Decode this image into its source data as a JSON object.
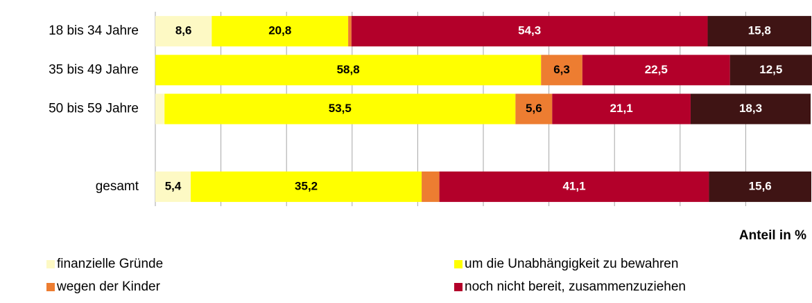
{
  "chart_data": {
    "type": "stacked_hbar",
    "categories": [
      "18 bis 34 Jahre",
      "35 bis 49 Jahre",
      "50 bis 59 Jahre",
      null,
      "gesamt"
    ],
    "x_label": "Anteil in %",
    "xlim": [
      0,
      100
    ],
    "xticks": [
      0,
      10,
      20,
      30,
      40,
      50,
      60,
      70,
      80,
      90,
      100
    ],
    "grid": true,
    "legend": "bottom",
    "series": [
      {
        "name": "finanzielle Gründe",
        "color": "#fdf9c4",
        "values": [
          8.6,
          0,
          1.4,
          null,
          5.4
        ],
        "value_labels": [
          "8,6",
          null,
          "1,4",
          null,
          "5,4"
        ]
      },
      {
        "name": "um die Unabhängigkeit zu bewahren",
        "color": "#ffff00",
        "values": [
          20.8,
          58.8,
          53.5,
          null,
          35.2
        ],
        "value_labels": [
          "20,8",
          "58,8",
          "53,5",
          null,
          "35,2"
        ]
      },
      {
        "name": "wegen der Kinder",
        "color": "#ed7d31",
        "values": [
          0.5,
          6.3,
          5.6,
          null,
          2.7
        ],
        "value_labels": [
          "0,5",
          "6,3",
          "5,6",
          null,
          "2,7"
        ]
      },
      {
        "name": "noch nicht bereit, zusammenzuziehen",
        "color": "#b3002a",
        "values": [
          54.3,
          22.5,
          21.1,
          null,
          41.1
        ],
        "value_labels": [
          "54,3",
          "22,5",
          "21,1",
          null,
          "41,1"
        ]
      },
      {
        "color": "#3f1414",
        "values": [
          15.8,
          12.5,
          18.3,
          null,
          15.6
        ],
        "value_labels": [
          "15,8",
          "12,5",
          "18,3",
          null,
          "15,6"
        ]
      }
    ]
  }
}
